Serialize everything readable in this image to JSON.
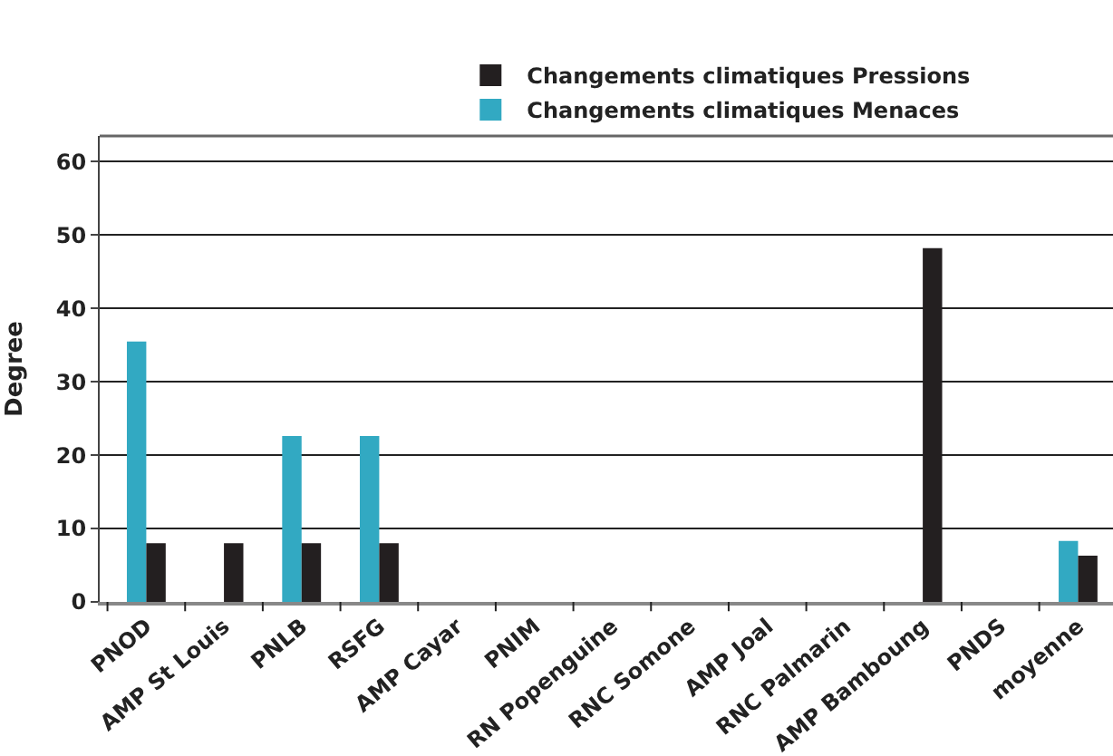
{
  "chart_data": {
    "type": "bar",
    "ylabel": "Degree",
    "categories": [
      "PNOD",
      "AMP St Louis",
      "PNLB",
      "RSFG",
      "AMP Cayar",
      "PNIM",
      "RN Popenguine",
      "RNC Somone",
      "AMP Joal",
      "RNC Palmarin",
      "AMP Bamboung",
      "PNDS",
      "moyenne"
    ],
    "series": [
      {
        "name": "Changements climatiques Pressions",
        "color": "#231f20",
        "values": [
          8,
          8,
          8,
          8,
          null,
          null,
          null,
          null,
          null,
          null,
          48.2,
          null,
          6.3
        ]
      },
      {
        "name": "Changements climatiques Menaces",
        "color": "#32a9c2",
        "values": [
          35.5,
          null,
          22.6,
          22.6,
          null,
          null,
          null,
          null,
          null,
          null,
          null,
          null,
          8.3
        ]
      }
    ],
    "ylim": [
      0,
      63.5
    ],
    "yticks": [
      0,
      10,
      20,
      30,
      40,
      50,
      60
    ],
    "grid": "y",
    "legend": "top"
  }
}
